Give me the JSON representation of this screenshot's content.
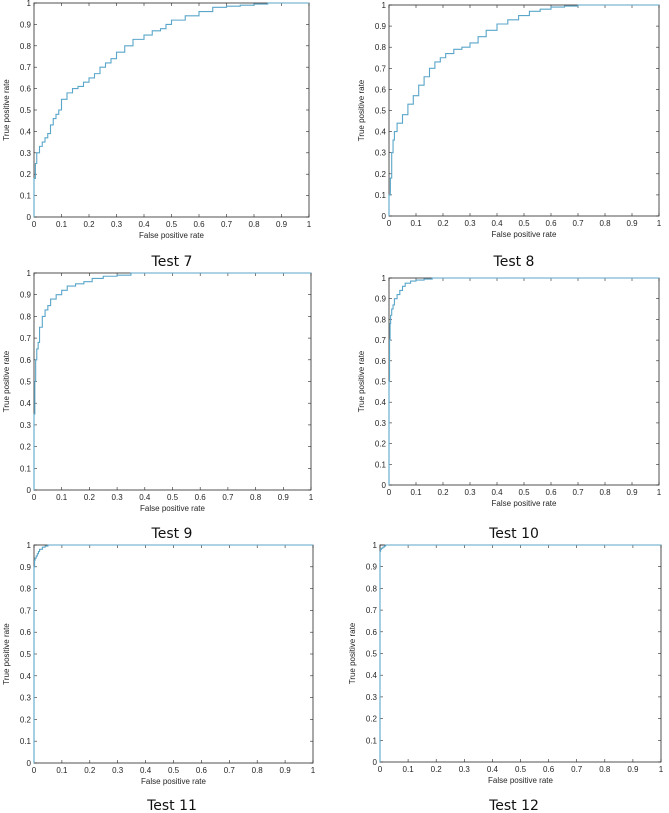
{
  "colors": {
    "curve": "#5aa6c9",
    "axis": "#262626",
    "background": "#ffffff"
  },
  "chart_data": [
    {
      "type": "line",
      "caption": "Test 7",
      "xlabel": "False positive rate",
      "ylabel": "True positive rate",
      "xlim": [
        0,
        1
      ],
      "ylim": [
        0,
        1
      ],
      "xticks": [
        "0",
        "0.1",
        "0.2",
        "0.3",
        "0.4",
        "0.5",
        "0.6",
        "0.7",
        "0.8",
        "0.9",
        "1"
      ],
      "yticks": [
        "0",
        "0.1",
        "0.2",
        "0.3",
        "0.4",
        "0.5",
        "0.6",
        "0.7",
        "0.8",
        "0.9",
        "1"
      ],
      "grid": false,
      "x": [
        0,
        0.005,
        0.01,
        0.02,
        0.03,
        0.04,
        0.05,
        0.06,
        0.07,
        0.08,
        0.09,
        0.1,
        0.12,
        0.14,
        0.16,
        0.18,
        0.2,
        0.22,
        0.24,
        0.26,
        0.28,
        0.3,
        0.33,
        0.36,
        0.4,
        0.43,
        0.46,
        0.48,
        0.5,
        0.55,
        0.6,
        0.65,
        0.7,
        0.75,
        0.8,
        0.85,
        0.9,
        0.95,
        1
      ],
      "y": [
        0,
        0.18,
        0.25,
        0.3,
        0.33,
        0.35,
        0.37,
        0.39,
        0.43,
        0.46,
        0.48,
        0.5,
        0.55,
        0.58,
        0.6,
        0.61,
        0.63,
        0.65,
        0.67,
        0.7,
        0.72,
        0.74,
        0.77,
        0.8,
        0.83,
        0.85,
        0.87,
        0.88,
        0.9,
        0.92,
        0.94,
        0.96,
        0.98,
        0.985,
        0.99,
        0.995,
        1,
        1,
        1
      ]
    },
    {
      "type": "line",
      "caption": "Test 8",
      "xlabel": "False positive rate",
      "ylabel": "True positive rate",
      "xlim": [
        0,
        1
      ],
      "ylim": [
        0,
        1
      ],
      "xticks": [
        "0",
        "0.1",
        "0.2",
        "0.3",
        "0.4",
        "0.5",
        "0.6",
        "0.7",
        "0.8",
        "0.9",
        "1"
      ],
      "yticks": [
        "0",
        "0.1",
        "0.2",
        "0.3",
        "0.4",
        "0.5",
        "0.6",
        "0.7",
        "0.8",
        "0.9",
        "1"
      ],
      "grid": false,
      "x": [
        0,
        0.005,
        0.01,
        0.015,
        0.02,
        0.03,
        0.05,
        0.07,
        0.09,
        0.11,
        0.13,
        0.15,
        0.17,
        0.19,
        0.21,
        0.24,
        0.27,
        0.3,
        0.33,
        0.36,
        0.4,
        0.44,
        0.48,
        0.52,
        0.56,
        0.6,
        0.65,
        0.7,
        0.75,
        0.8,
        0.9,
        1
      ],
      "y": [
        0,
        0.1,
        0.18,
        0.3,
        0.36,
        0.4,
        0.44,
        0.48,
        0.53,
        0.57,
        0.62,
        0.66,
        0.7,
        0.73,
        0.75,
        0.77,
        0.79,
        0.8,
        0.82,
        0.85,
        0.88,
        0.91,
        0.93,
        0.95,
        0.97,
        0.98,
        0.99,
        0.995,
        1,
        1,
        1,
        1
      ]
    },
    {
      "type": "line",
      "caption": "Test 9",
      "xlabel": "False positive rate",
      "ylabel": "True positive rate",
      "xlim": [
        0,
        1
      ],
      "ylim": [
        0,
        1
      ],
      "xticks": [
        "0",
        "0.1",
        "0.2",
        "0.3",
        "0.4",
        "0.5",
        "0.6",
        "0.7",
        "0.8",
        "0.9",
        "1"
      ],
      "yticks": [
        "0",
        "0.1",
        "0.2",
        "0.3",
        "0.4",
        "0.5",
        "0.6",
        "0.7",
        "0.8",
        "0.9",
        "1"
      ],
      "grid": false,
      "x": [
        0,
        0.003,
        0.006,
        0.01,
        0.015,
        0.02,
        0.03,
        0.04,
        0.05,
        0.06,
        0.08,
        0.1,
        0.12,
        0.15,
        0.18,
        0.21,
        0.25,
        0.3,
        0.35,
        0.4,
        0.5,
        0.6,
        0.8,
        1
      ],
      "y": [
        0,
        0.35,
        0.5,
        0.6,
        0.65,
        0.68,
        0.75,
        0.8,
        0.83,
        0.85,
        0.88,
        0.9,
        0.92,
        0.94,
        0.95,
        0.96,
        0.975,
        0.985,
        0.99,
        1,
        1,
        1,
        1,
        1
      ]
    },
    {
      "type": "line",
      "caption": "Test 10",
      "xlabel": "False positive rate",
      "ylabel": "True positive rate",
      "xlim": [
        0,
        1
      ],
      "ylim": [
        0,
        1
      ],
      "xticks": [
        "0",
        "0.1",
        "0.2",
        "0.3",
        "0.4",
        "0.5",
        "0.6",
        "0.7",
        "0.8",
        "0.9",
        "1"
      ],
      "yticks": [
        "0",
        "0.1",
        "0.2",
        "0.3",
        "0.4",
        "0.5",
        "0.6",
        "0.7",
        "0.8",
        "0.9",
        "1"
      ],
      "grid": false,
      "x": [
        0,
        0.002,
        0.004,
        0.006,
        0.01,
        0.015,
        0.02,
        0.03,
        0.04,
        0.05,
        0.06,
        0.08,
        0.1,
        0.13,
        0.16,
        0.2,
        0.3,
        0.5,
        1
      ],
      "y": [
        0,
        0.5,
        0.7,
        0.78,
        0.82,
        0.85,
        0.87,
        0.9,
        0.92,
        0.94,
        0.96,
        0.975,
        0.985,
        0.99,
        0.995,
        1,
        1,
        1,
        1
      ]
    },
    {
      "type": "line",
      "caption": "Test 11",
      "xlabel": "False positive rate",
      "ylabel": "True positive rate",
      "xlim": [
        0,
        1
      ],
      "ylim": [
        0,
        1
      ],
      "xticks": [
        "0",
        "0.1",
        "0.2",
        "0.3",
        "0.4",
        "0.5",
        "0.6",
        "0.7",
        "0.8",
        "0.9",
        "1"
      ],
      "yticks": [
        "0",
        "0.1",
        "0.2",
        "0.3",
        "0.4",
        "0.5",
        "0.6",
        "0.7",
        "0.8",
        "0.9",
        "1"
      ],
      "grid": false,
      "x": [
        0,
        0.002,
        0.004,
        0.008,
        0.012,
        0.016,
        0.02,
        0.03,
        0.04,
        0.05,
        0.06,
        0.08,
        0.1,
        0.2,
        0.5,
        1
      ],
      "y": [
        0,
        0.9,
        0.93,
        0.94,
        0.95,
        0.96,
        0.97,
        0.98,
        0.99,
        0.995,
        1,
        1,
        1,
        1,
        1,
        1
      ]
    },
    {
      "type": "line",
      "caption": "Test 12",
      "xlabel": "False positive rate",
      "ylabel": "True positive rate",
      "xlim": [
        0,
        1
      ],
      "ylim": [
        0,
        1
      ],
      "xticks": [
        "0",
        "0.1",
        "0.2",
        "0.3",
        "0.4",
        "0.5",
        "0.6",
        "0.7",
        "0.8",
        "0.9",
        "1"
      ],
      "yticks": [
        "0",
        "0.1",
        "0.2",
        "0.3",
        "0.4",
        "0.5",
        "0.6",
        "0.7",
        "0.8",
        "0.9",
        "1"
      ],
      "grid": false,
      "x": [
        0,
        0.002,
        0.005,
        0.01,
        0.015,
        0.02,
        0.03,
        0.05,
        0.1,
        0.2,
        0.5,
        1
      ],
      "y": [
        0,
        0.97,
        0.98,
        0.985,
        0.99,
        0.995,
        1,
        1,
        1,
        1,
        1,
        1
      ]
    }
  ]
}
